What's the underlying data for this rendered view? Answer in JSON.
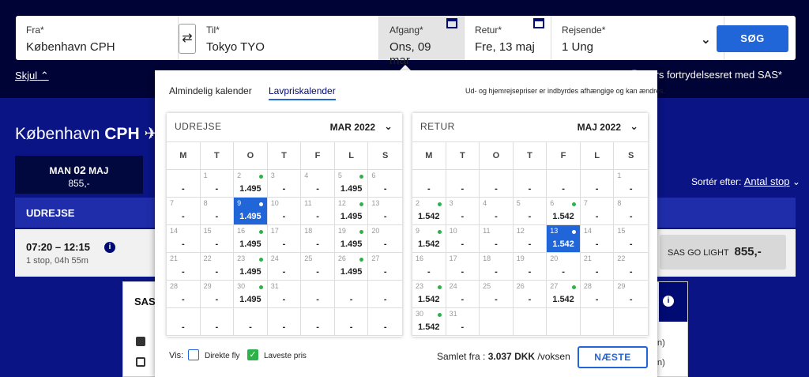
{
  "colors": {
    "accent": "#2166d9",
    "brand": "#000a73",
    "available_dot": "#2db24a"
  },
  "search": {
    "from_label": "Fra*",
    "from_value": "København CPH",
    "to_label": "Til*",
    "to_value": "Tokyo TYO",
    "depart_label": "Afgang*",
    "depart_value": "Ons, 09 mar",
    "return_label": "Retur*",
    "return_value": "Fre, 13 maj",
    "pax_label": "Rejsende*",
    "pax_value": "1 Ung",
    "search_button": "SØG",
    "swap_icon": "⇄"
  },
  "skjul": "Skjul",
  "promo_text": "timers fortrydelsesret med SAS*",
  "route": {
    "city": "København",
    "code": "CPH"
  },
  "date_strip": {
    "weekday": "MAN",
    "day": "02",
    "month": "MAJ",
    "price": "855,-"
  },
  "sort": {
    "label": "Sortér efter:",
    "value": "Antal stop"
  },
  "udrejse_bar": "UDREJSE",
  "flight": {
    "time": "07:20 – 12:15",
    "stops": "1 stop, 04h 55m",
    "fare_name": "SAS GO LIGHT",
    "fare_price": "855,-"
  },
  "detail": {
    "airline": "SAS",
    "trunc1": "n)",
    "trunc2": "n)"
  },
  "calendar": {
    "tabs": [
      "Almindelig kalender",
      "Lavpriskalender"
    ],
    "note": "Ud- og hjemrejsepriser er indbyrdes afhængige og kan ændres.",
    "weekdays": [
      "M",
      "T",
      "O",
      "T",
      "F",
      "L",
      "S"
    ],
    "outbound": {
      "title": "UDREJSE",
      "month": "MAR 2022",
      "rows": [
        [
          {
            "d": "",
            "p": "-"
          },
          {
            "d": "1",
            "p": "-"
          },
          {
            "d": "2",
            "p": "1.495",
            "dot": true
          },
          {
            "d": "3",
            "p": "-"
          },
          {
            "d": "4",
            "p": "-"
          },
          {
            "d": "5",
            "p": "1.495",
            "dot": true
          },
          {
            "d": "6",
            "p": "-"
          }
        ],
        [
          {
            "d": "7",
            "p": "-"
          },
          {
            "d": "8",
            "p": "-"
          },
          {
            "d": "9",
            "p": "1.495",
            "dot": true,
            "sel": true
          },
          {
            "d": "10",
            "p": "-"
          },
          {
            "d": "11",
            "p": "-"
          },
          {
            "d": "12",
            "p": "1.495",
            "dot": true
          },
          {
            "d": "13",
            "p": "-"
          }
        ],
        [
          {
            "d": "14",
            "p": "-"
          },
          {
            "d": "15",
            "p": "-"
          },
          {
            "d": "16",
            "p": "1.495",
            "dot": true
          },
          {
            "d": "17",
            "p": "-"
          },
          {
            "d": "18",
            "p": "-"
          },
          {
            "d": "19",
            "p": "1.495",
            "dot": true
          },
          {
            "d": "20",
            "p": "-"
          }
        ],
        [
          {
            "d": "21",
            "p": "-"
          },
          {
            "d": "22",
            "p": "-"
          },
          {
            "d": "23",
            "p": "1.495",
            "dot": true
          },
          {
            "d": "24",
            "p": "-"
          },
          {
            "d": "25",
            "p": "-"
          },
          {
            "d": "26",
            "p": "1.495",
            "dot": true
          },
          {
            "d": "27",
            "p": "-"
          }
        ],
        [
          {
            "d": "28",
            "p": "-"
          },
          {
            "d": "29",
            "p": "-"
          },
          {
            "d": "30",
            "p": "1.495",
            "dot": true
          },
          {
            "d": "31",
            "p": "-"
          },
          {
            "d": "",
            "p": "-"
          },
          {
            "d": "",
            "p": "-"
          },
          {
            "d": "",
            "p": "-"
          }
        ],
        [
          {
            "d": "",
            "p": "-"
          },
          {
            "d": "",
            "p": "-"
          },
          {
            "d": "",
            "p": "-"
          },
          {
            "d": "",
            "p": "-"
          },
          {
            "d": "",
            "p": "-"
          },
          {
            "d": "",
            "p": "-"
          },
          {
            "d": "",
            "p": "-"
          }
        ]
      ]
    },
    "return": {
      "title": "RETUR",
      "month": "MAJ 2022",
      "rows": [
        [
          {
            "d": "",
            "p": "-"
          },
          {
            "d": "",
            "p": "-"
          },
          {
            "d": "",
            "p": "-"
          },
          {
            "d": "",
            "p": "-"
          },
          {
            "d": "",
            "p": "-"
          },
          {
            "d": "",
            "p": "-"
          },
          {
            "d": "1",
            "p": "-"
          }
        ],
        [
          {
            "d": "2",
            "p": "1.542",
            "dot": true
          },
          {
            "d": "3",
            "p": "-"
          },
          {
            "d": "4",
            "p": "-"
          },
          {
            "d": "5",
            "p": "-"
          },
          {
            "d": "6",
            "p": "1.542",
            "dot": true
          },
          {
            "d": "7",
            "p": "-"
          },
          {
            "d": "8",
            "p": "-"
          }
        ],
        [
          {
            "d": "9",
            "p": "1.542",
            "dot": true
          },
          {
            "d": "10",
            "p": "-"
          },
          {
            "d": "11",
            "p": "-"
          },
          {
            "d": "12",
            "p": "-"
          },
          {
            "d": "13",
            "p": "1.542",
            "dot": true,
            "sel": true
          },
          {
            "d": "14",
            "p": "-"
          },
          {
            "d": "15",
            "p": "-"
          }
        ],
        [
          {
            "d": "16",
            "p": "-"
          },
          {
            "d": "17",
            "p": "-"
          },
          {
            "d": "18",
            "p": "-"
          },
          {
            "d": "19",
            "p": "-"
          },
          {
            "d": "20",
            "p": "-"
          },
          {
            "d": "21",
            "p": "-"
          },
          {
            "d": "22",
            "p": "-"
          }
        ],
        [
          {
            "d": "23",
            "p": "1.542",
            "dot": true
          },
          {
            "d": "24",
            "p": "-"
          },
          {
            "d": "25",
            "p": "-"
          },
          {
            "d": "26",
            "p": "-"
          },
          {
            "d": "27",
            "p": "1.542",
            "dot": true
          },
          {
            "d": "28",
            "p": "-"
          },
          {
            "d": "29",
            "p": "-"
          }
        ],
        [
          {
            "d": "30",
            "p": "1.542",
            "dot": true
          },
          {
            "d": "31",
            "p": "-"
          },
          {
            "d": "",
            "p": ""
          },
          {
            "d": "",
            "p": ""
          },
          {
            "d": "",
            "p": ""
          },
          {
            "d": "",
            "p": ""
          },
          {
            "d": "",
            "p": ""
          }
        ]
      ]
    },
    "vis_label": "Vis:",
    "checkbox_direct": "Direkte fly",
    "checkbox_lowest": "Laveste pris",
    "total_label": "Samlet fra :",
    "total_value": "3.037 DKK",
    "total_suffix": "/voksen",
    "next_button": "NÆSTE"
  }
}
